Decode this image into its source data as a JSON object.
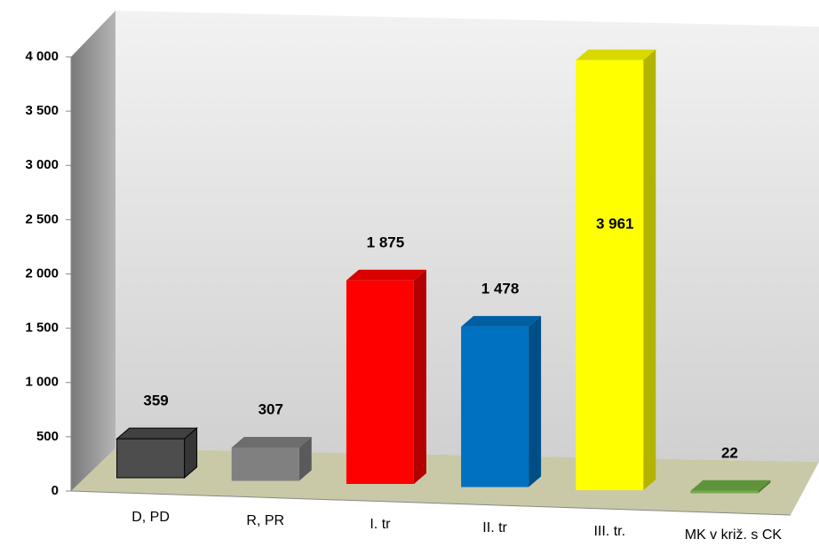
{
  "chart_data": {
    "type": "bar",
    "categories": [
      "D, PD",
      "R, PR",
      "I. tr",
      "II. tr",
      "III. tr.",
      "MK v križ. s CK"
    ],
    "values": [
      359,
      307,
      1875,
      1478,
      3961,
      22
    ],
    "value_labels": [
      "359",
      "307",
      "1 875",
      "1 478",
      "3 961",
      "22"
    ],
    "colors": [
      "#4d4d4d",
      "#808080",
      "#ff0000",
      "#0070c0",
      "#ffff00",
      "#70ad47"
    ],
    "ylim": [
      0,
      4400
    ],
    "yticks": [
      0,
      500,
      {
        "value": 1000,
        "label": "1 000"
      },
      {
        "value": 1500,
        "label": "1 500"
      },
      {
        "value": 2000,
        "label": "2 000"
      },
      {
        "value": 2500,
        "label": "2 500"
      },
      {
        "value": 3000,
        "label": "3 000"
      },
      {
        "value": 3500,
        "label": "3 500"
      },
      {
        "value": 4000,
        "label": "4 000"
      }
    ],
    "grid": false
  }
}
